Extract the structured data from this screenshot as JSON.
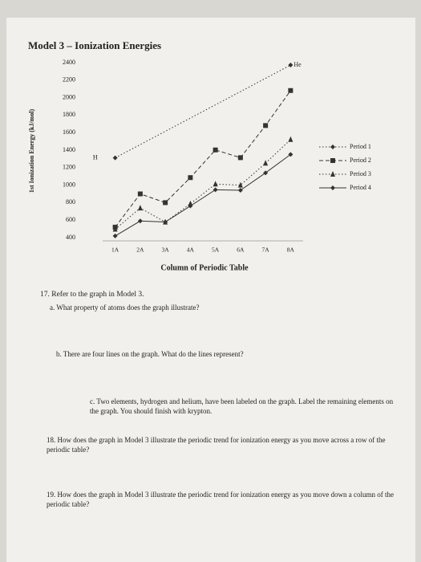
{
  "header": {
    "title": "Model 3 – Ionization Energies"
  },
  "chart_data": {
    "type": "line",
    "xlabel": "Column of Periodic Table",
    "ylabel": "1st Ionization Energy (kJ/mol)",
    "categories": [
      "1A",
      "2A",
      "3A",
      "4A",
      "5A",
      "6A",
      "7A",
      "8A"
    ],
    "ylim": [
      400,
      2400
    ],
    "yticks": [
      400,
      600,
      800,
      1000,
      1200,
      1400,
      1600,
      1800,
      2000,
      2200,
      2400
    ],
    "legend": "right",
    "annotations": [
      {
        "text": "H",
        "x": "1A",
        "y": 1312
      },
      {
        "text": "He",
        "x": "8A",
        "y": 2372
      }
    ],
    "series": [
      {
        "name": "Period 1",
        "color": "#333333",
        "style": "dotted",
        "marker": "diamond",
        "x": [
          "1A",
          "8A"
        ],
        "values": [
          1312,
          2372
        ]
      },
      {
        "name": "Period 2",
        "color": "#333333",
        "style": "dashed",
        "marker": "square",
        "values": [
          520,
          900,
          800,
          1086,
          1402,
          1314,
          1681,
          2081
        ]
      },
      {
        "name": "Period 3",
        "color": "#333333",
        "style": "dotted",
        "marker": "triangle",
        "values": [
          496,
          738,
          578,
          787,
          1012,
          1000,
          1251,
          1521
        ]
      },
      {
        "name": "Period 4",
        "color": "#333333",
        "style": "solid",
        "marker": "diamond",
        "values": [
          419,
          590,
          579,
          762,
          947,
          941,
          1140,
          1351
        ]
      }
    ]
  },
  "questions": {
    "q17": "17. Refer to the graph in Model 3.",
    "q17a": "a. What property of atoms does the graph illustrate?",
    "q17b": "b. There are four lines on the graph. What do the lines represent?",
    "q17c": "c. Two elements, hydrogen and helium, have been labeled on the graph. Label the remaining elements on the graph. You should finish with krypton.",
    "q18": "18. How does the graph in Model 3 illustrate the periodic trend for ionization energy as you move across a row of the periodic table?",
    "q19": "19. How does the graph in Model 3 illustrate the periodic trend for ionization energy as you move down a column of the periodic table?"
  }
}
